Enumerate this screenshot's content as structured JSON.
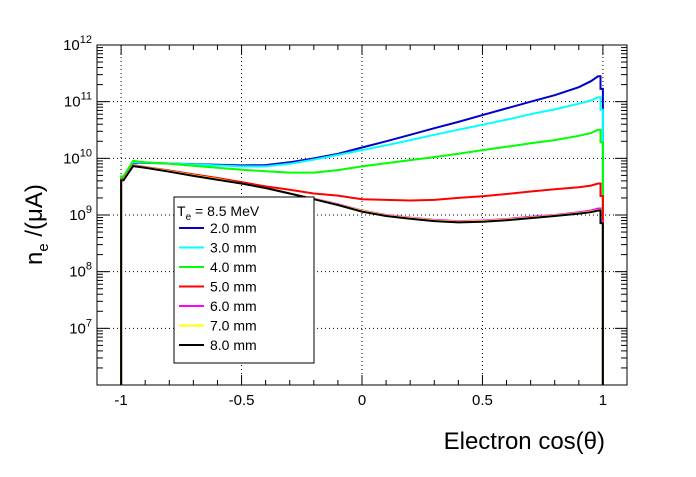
{
  "chart_data": {
    "type": "line",
    "xlabel": "Electron cos(θ)",
    "ylabel": "n",
    "ylabel_sub": "e",
    "ylabel_tail": " /(μA)",
    "yscale": "log",
    "xlim": [
      -1.1,
      1.1
    ],
    "ylim": [
      1000000,
      1000000000000
    ],
    "grid": true,
    "x_ticks": [
      {
        "value": -1,
        "label": "-1"
      },
      {
        "value": -0.5,
        "label": "-0.5"
      },
      {
        "value": 0,
        "label": "0"
      },
      {
        "value": 0.5,
        "label": "0.5"
      },
      {
        "value": 1,
        "label": "1"
      }
    ],
    "y_ticks": [
      {
        "value": 10000000,
        "base": "10",
        "exp": "7"
      },
      {
        "value": 100000000,
        "base": "10",
        "exp": "8"
      },
      {
        "value": 1000000000,
        "base": "10",
        "exp": "9"
      },
      {
        "value": 10000000000,
        "base": "10",
        "exp": "10"
      },
      {
        "value": 100000000000,
        "base": "10",
        "exp": "11"
      },
      {
        "value": 1000000000000,
        "base": "10",
        "exp": "12"
      }
    ],
    "legend": {
      "placement": "center-left",
      "title_main": "T",
      "title_sub": "e",
      "title_tail": " = 8.5 MeV"
    },
    "x": [
      -0.99,
      -0.95,
      -0.9,
      -0.8,
      -0.7,
      -0.6,
      -0.5,
      -0.4,
      -0.3,
      -0.2,
      -0.1,
      0.0,
      0.1,
      0.2,
      0.3,
      0.4,
      0.5,
      0.6,
      0.7,
      0.8,
      0.9,
      0.95,
      0.98
    ],
    "series": [
      {
        "name": "2.0 mm",
        "color": "#0000cc",
        "values": [
          4500000000.0,
          8400000000.0,
          8300000000.0,
          8100000000.0,
          7900000000.0,
          7700000000.0,
          7500000000.0,
          7600000000.0,
          8500000000.0,
          10000000000.0,
          12000000000.0,
          15500000000.0,
          20000000000.0,
          26000000000.0,
          34000000000.0,
          44000000000.0,
          58000000000.0,
          76000000000.0,
          100000000000.0,
          130000000000.0,
          180000000000.0,
          230000000000.0,
          280000000000.0
        ]
      },
      {
        "name": "3.0 mm",
        "color": "#00ffff",
        "values": [
          4700000000.0,
          8600000000.0,
          8400000000.0,
          8100000000.0,
          7800000000.0,
          7500000000.0,
          7200000000.0,
          7200000000.0,
          8000000000.0,
          9500000000.0,
          11500000000.0,
          14000000000.0,
          17000000000.0,
          21000000000.0,
          26000000000.0,
          32000000000.0,
          39000000000.0,
          48000000000.0,
          60000000000.0,
          73000000000.0,
          92000000000.0,
          105000000000.0,
          120000000000.0
        ]
      },
      {
        "name": "4.0 mm",
        "color": "#00ff00",
        "values": [
          4800000000.0,
          9000000000.0,
          8500000000.0,
          8000000000.0,
          7400000000.0,
          6800000000.0,
          6300000000.0,
          5900000000.0,
          5600000000.0,
          5600000000.0,
          6200000000.0,
          7200000000.0,
          8200000000.0,
          9300000000.0,
          10500000000.0,
          12000000000.0,
          14000000000.0,
          16000000000.0,
          18500000000.0,
          21000000000.0,
          25000000000.0,
          28000000000.0,
          32000000000.0
        ]
      },
      {
        "name": "5.0 mm",
        "color": "#ff0000",
        "values": [
          4300000000.0,
          7600000000.0,
          7000000000.0,
          6100000000.0,
          5200000000.0,
          4500000000.0,
          3800000000.0,
          3200000000.0,
          2800000000.0,
          2400000000.0,
          2200000000.0,
          1900000000.0,
          1850000000.0,
          1800000000.0,
          1850000000.0,
          2000000000.0,
          2150000000.0,
          2350000000.0,
          2600000000.0,
          2850000000.0,
          3100000000.0,
          3300000000.0,
          3600000000.0
        ]
      },
      {
        "name": "6.0 mm",
        "color": "#ff00ff",
        "values": [
          4200000000.0,
          7500000000.0,
          6900000000.0,
          5900000000.0,
          5000000000.0,
          4300000000.0,
          3600000000.0,
          3000000000.0,
          2400000000.0,
          1950000000.0,
          1550000000.0,
          1200000000.0,
          1000000000.0,
          900000000.0,
          820000000.0,
          780000000.0,
          800000000.0,
          850000000.0,
          930000000.0,
          1000000000.0,
          1120000000.0,
          1200000000.0,
          1300000000.0
        ]
      },
      {
        "name": "7.0 mm",
        "color": "#ffff00",
        "values": [
          4200000000.0,
          7400000000.0,
          6900000000.0,
          5900000000.0,
          5000000000.0,
          4300000000.0,
          3600000000.0,
          3000000000.0,
          2400000000.0,
          1930000000.0,
          1520000000.0,
          1180000000.0,
          980000000.0,
          880000000.0,
          800000000.0,
          760000000.0,
          780000000.0,
          830000000.0,
          900000000.0,
          980000000.0,
          1080000000.0,
          1150000000.0,
          1220000000.0
        ]
      },
      {
        "name": "8.0 mm",
        "color": "#000000",
        "values": [
          4100000000.0,
          7300000000.0,
          6800000000.0,
          5800000000.0,
          4900000000.0,
          4200000000.0,
          3600000000.0,
          3000000000.0,
          2400000000.0,
          1900000000.0,
          1500000000.0,
          1150000000.0,
          960000000.0,
          860000000.0,
          780000000.0,
          740000000.0,
          760000000.0,
          810000000.0,
          880000000.0,
          960000000.0,
          1060000000.0,
          1120000000.0,
          1200000000.0
        ]
      }
    ]
  }
}
